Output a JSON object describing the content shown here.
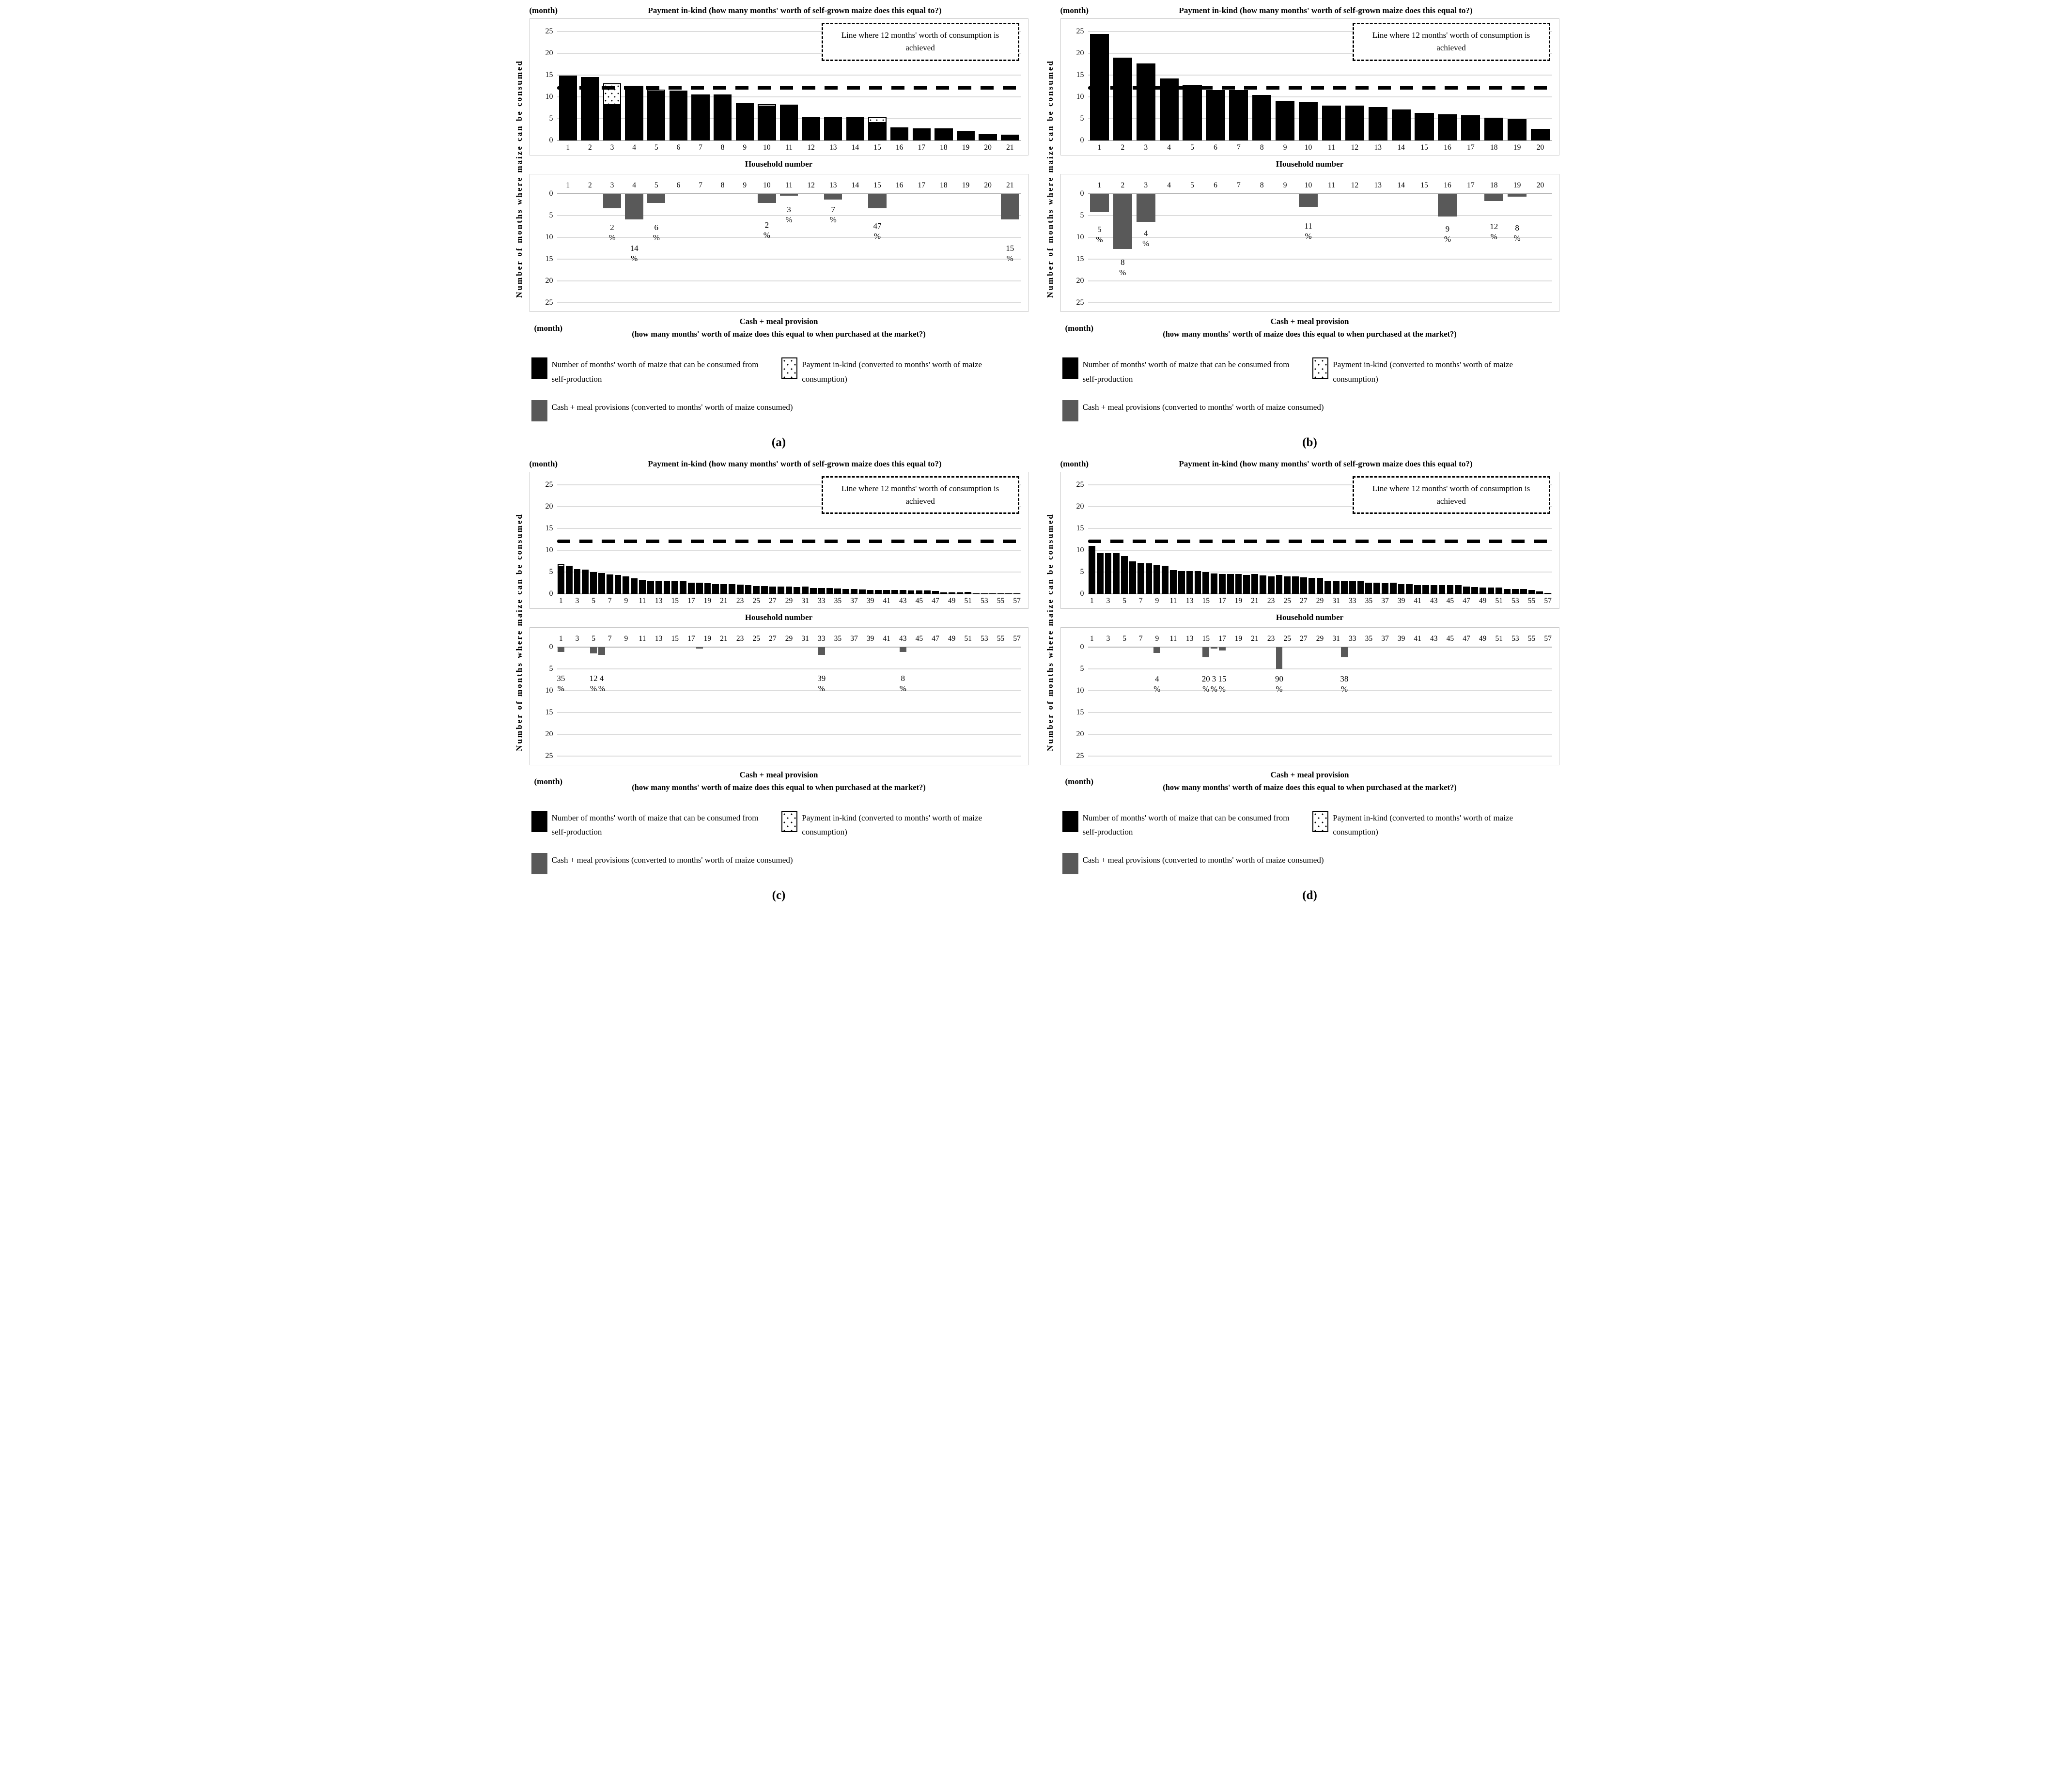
{
  "colors": {
    "bar_black": "#000000",
    "bar_gray": "#595959",
    "bar_inkind_fill": "#ffffff",
    "gridline": "#dcdcdc",
    "reference_line": "#000000"
  },
  "chart_data": [
    {
      "letter": "(a)",
      "month_unit": "(month)",
      "xlabel": "Household number",
      "ylabel": "Number of months where maize can be consumed",
      "yticks": [
        0,
        5,
        10,
        15,
        20,
        25
      ],
      "label_step": 1,
      "top": {
        "type": "bar",
        "title": "Payment in-kind (how many months' worth of self-grown maize does this equal to?)",
        "annotation": "Line where 12 months' worth of consumption is achieved",
        "reference_value": 12,
        "ylim": [
          0,
          25
        ],
        "categories": [
          1,
          2,
          3,
          4,
          5,
          6,
          7,
          8,
          9,
          10,
          11,
          12,
          13,
          14,
          15,
          16,
          17,
          18,
          19,
          20,
          21
        ],
        "self_values": [
          14.9,
          14.6,
          8.2,
          12.6,
          11.2,
          11.4,
          10.6,
          10.6,
          8.6,
          7.9,
          8.2,
          5.3,
          5.3,
          5.3,
          4.1,
          3.0,
          2.8,
          2.8,
          2.1,
          1.5,
          1.3
        ],
        "inkind_values": [
          0,
          0,
          5.0,
          0,
          0.6,
          0,
          0,
          0,
          0,
          0.6,
          0,
          0,
          0,
          0,
          1.4,
          0,
          0,
          0,
          0,
          0,
          0
        ]
      },
      "bottom": {
        "type": "bar-down",
        "title": "Cash + meal provision",
        "subtitle": "(how many months' worth of maize does this equal to when purchased at the market?)",
        "ylim": [
          0,
          25
        ],
        "percent_sign": "%",
        "values": [
          0,
          0,
          3.3,
          5.9,
          2.1,
          0,
          0,
          0,
          0,
          2.1,
          0.4,
          0,
          1.3,
          0,
          3.3,
          0,
          0,
          0,
          0,
          0,
          5.9
        ],
        "labels": [
          {
            "index": 3,
            "value": "2",
            "depth": 6.5
          },
          {
            "index": 4,
            "value": "14",
            "depth": 11.3
          },
          {
            "index": 5,
            "value": "6",
            "depth": 6.5
          },
          {
            "index": 10,
            "value": "2",
            "depth": 6.0
          },
          {
            "index": 11,
            "value": "3",
            "depth": 2.4
          },
          {
            "index": 13,
            "value": "7",
            "depth": 2.4
          },
          {
            "index": 15,
            "value": "47",
            "depth": 6.2
          },
          {
            "index": 21,
            "value": "15",
            "depth": 11.3
          }
        ]
      },
      "legend": {
        "self_label": "Number of months' worth of maize that can be consumed from self-production",
        "inkind_label": "Payment in-kind (converted to months' worth of maize consumption)",
        "cash_label": "Cash + meal provisions (converted to months' worth of maize consumed)"
      }
    },
    {
      "letter": "(b)",
      "month_unit": "(month)",
      "xlabel": "Household number",
      "ylabel": "Number of months where maize can be consumed",
      "yticks": [
        0,
        5,
        10,
        15,
        20,
        25
      ],
      "label_step": 1,
      "top": {
        "type": "bar",
        "title": "Payment in-kind (how many months' worth of self-grown maize does this equal to?)",
        "annotation": "Line where 12 months' worth of consumption is achieved",
        "reference_value": 12,
        "ylim": [
          0,
          25
        ],
        "categories": [
          1,
          2,
          3,
          4,
          5,
          6,
          7,
          8,
          9,
          10,
          11,
          12,
          13,
          14,
          15,
          16,
          17,
          18,
          19,
          20
        ],
        "self_values": [
          24.4,
          19.0,
          17.7,
          14.2,
          12.8,
          11.6,
          11.6,
          10.5,
          9.1,
          8.8,
          8.0,
          8.0,
          7.7,
          7.1,
          6.3,
          6.0,
          5.8,
          5.2,
          4.9,
          2.7
        ],
        "inkind_values": [
          0,
          0,
          0,
          0,
          0,
          0,
          0,
          0,
          0,
          0,
          0,
          0,
          0,
          0,
          0,
          0,
          0,
          0,
          0,
          0
        ]
      },
      "bottom": {
        "type": "bar-down",
        "title": "Cash + meal provision",
        "subtitle": "(how many months' worth of maize does this equal to when purchased at the market?)",
        "ylim": [
          0,
          25
        ],
        "percent_sign": "%",
        "values": [
          4.2,
          12.7,
          6.4,
          0,
          0,
          0,
          0,
          0,
          0,
          3.0,
          0,
          0,
          0,
          0,
          0,
          5.2,
          0,
          1.7,
          0.7,
          0
        ],
        "labels": [
          {
            "index": 1,
            "value": "5",
            "depth": 7.0
          },
          {
            "index": 2,
            "value": "8",
            "depth": 14.5
          },
          {
            "index": 3,
            "value": "4",
            "depth": 7.9
          },
          {
            "index": 10,
            "value": "11",
            "depth": 6.2
          },
          {
            "index": 16,
            "value": "9",
            "depth": 6.9
          },
          {
            "index": 18,
            "value": "12",
            "depth": 6.3
          },
          {
            "index": 19,
            "value": "8",
            "depth": 6.7
          }
        ]
      },
      "legend": {
        "self_label": "Number of months' worth of maize that can be consumed from self-production",
        "inkind_label": "Payment in-kind (converted to months' worth of maize consumption)",
        "cash_label": "Cash + meal provisions (converted to months' worth of maize consumed)"
      }
    },
    {
      "letter": "(c)",
      "month_unit": "(month)",
      "xlabel": "Household number",
      "ylabel": "Number of months where maize can be consumed",
      "yticks": [
        0,
        5,
        10,
        15,
        20,
        25
      ],
      "label_step": 2,
      "top": {
        "type": "bar",
        "title": "Payment in-kind (how many months' worth of self-grown maize does this equal to?)",
        "annotation": "Line where 12 months' worth of consumption is achieved",
        "reference_value": 12,
        "ylim": [
          0,
          25
        ],
        "categories": [
          1,
          2,
          3,
          4,
          5,
          6,
          7,
          8,
          9,
          10,
          11,
          12,
          13,
          14,
          15,
          16,
          17,
          18,
          19,
          20,
          21,
          22,
          23,
          24,
          25,
          26,
          27,
          28,
          29,
          30,
          31,
          32,
          33,
          34,
          35,
          36,
          37,
          38,
          39,
          40,
          41,
          42,
          43,
          44,
          45,
          46,
          47,
          48,
          49,
          50,
          51,
          52,
          53,
          54,
          55,
          56,
          57
        ],
        "self_values": [
          6.3,
          6.4,
          5.6,
          5.5,
          5.0,
          4.7,
          4.4,
          4.3,
          4.0,
          3.5,
          3.2,
          3.0,
          2.9,
          2.9,
          2.8,
          2.8,
          2.5,
          2.5,
          2.4,
          2.2,
          2.2,
          2.2,
          2.1,
          1.9,
          1.7,
          1.7,
          1.6,
          1.6,
          1.6,
          1.5,
          1.6,
          1.3,
          1.3,
          1.3,
          1.2,
          1.1,
          1.1,
          1.0,
          0.8,
          0.8,
          0.8,
          0.8,
          0.8,
          0.7,
          0.7,
          0.7,
          0.6,
          0.3,
          0.3,
          0.3,
          0.4,
          0.1,
          0.1,
          0.1,
          0.1,
          0.1,
          0.05
        ],
        "inkind_values": [
          0.6,
          0,
          0,
          0,
          0,
          0,
          0,
          0,
          0,
          0,
          0,
          0,
          0,
          0,
          0,
          0,
          0,
          0,
          0,
          0,
          0,
          0,
          0,
          0,
          0,
          0,
          0,
          0,
          0,
          0,
          0,
          0,
          0,
          0,
          0,
          0,
          0,
          0,
          0,
          0,
          0,
          0,
          0,
          0,
          0,
          0,
          0,
          0,
          0,
          0,
          0,
          0,
          0,
          0,
          0,
          0,
          0
        ]
      },
      "bottom": {
        "type": "bar-down",
        "title": "Cash + meal provision",
        "subtitle": "(how many months' worth of maize does this equal to when purchased at the market?)",
        "ylim": [
          0,
          25
        ],
        "percent_sign": "%",
        "values": [
          1.2,
          0,
          0,
          0,
          1.5,
          1.8,
          0,
          0,
          0,
          0,
          0,
          0,
          0,
          0,
          0,
          0,
          0,
          0.35,
          0,
          0,
          0,
          0,
          0,
          0,
          0,
          0,
          0,
          0,
          0,
          0,
          0,
          0,
          1.8,
          0,
          0,
          0,
          0,
          0,
          0,
          0,
          0,
          0,
          1.2,
          0,
          0,
          0,
          0,
          0,
          0,
          0,
          0,
          0,
          0,
          0,
          0,
          0,
          0
        ],
        "labels": [
          {
            "index": 1,
            "value": "35",
            "depth": 6.1
          },
          {
            "index": 5,
            "value": "12",
            "depth": 6.1
          },
          {
            "index": 6,
            "value": "4",
            "depth": 6.1
          },
          {
            "index": 33,
            "value": "39",
            "depth": 6.1
          },
          {
            "index": 43,
            "value": "8",
            "depth": 6.1
          }
        ]
      },
      "legend": {
        "self_label": "Number of months' worth of maize that can be consumed from self-production",
        "inkind_label": "Payment in-kind (converted to months' worth of maize consumption)",
        "cash_label": "Cash + meal provisions (converted to months' worth of maize consumed)"
      }
    },
    {
      "letter": "(d)",
      "month_unit": "(month)",
      "xlabel": "Household number",
      "ylabel": "Number of months where maize can be consumed",
      "yticks": [
        0,
        5,
        10,
        15,
        20,
        25
      ],
      "label_step": 2,
      "top": {
        "type": "bar",
        "title": "Payment in-kind (how many months' worth of self-grown maize does this equal to?)",
        "annotation": "Line where 12 months' worth of consumption is achieved",
        "reference_value": 12,
        "ylim": [
          0,
          25
        ],
        "categories": [
          1,
          2,
          3,
          4,
          5,
          6,
          7,
          8,
          9,
          10,
          11,
          12,
          13,
          14,
          15,
          16,
          17,
          18,
          19,
          20,
          21,
          22,
          23,
          24,
          25,
          26,
          27,
          28,
          29,
          30,
          31,
          32,
          33,
          34,
          35,
          36,
          37,
          38,
          39,
          40,
          41,
          42,
          43,
          44,
          45,
          46,
          47,
          48,
          49,
          50,
          51,
          52,
          53,
          54,
          55,
          56,
          57
        ],
        "self_values": [
          11.0,
          9.3,
          9.3,
          9.3,
          8.6,
          7.4,
          7.1,
          7.0,
          6.5,
          6.4,
          5.4,
          5.2,
          5.2,
          5.2,
          4.9,
          4.6,
          4.5,
          4.5,
          4.5,
          4.3,
          4.5,
          4.2,
          4.0,
          4.3,
          4.0,
          3.9,
          3.7,
          3.6,
          3.6,
          3.0,
          3.0,
          2.9,
          2.8,
          2.8,
          2.5,
          2.5,
          2.4,
          2.5,
          2.2,
          2.2,
          2.0,
          1.9,
          1.9,
          1.9,
          1.9,
          1.9,
          1.6,
          1.5,
          1.4,
          1.4,
          1.4,
          1.1,
          1.1,
          1.1,
          0.8,
          0.5,
          0.2
        ],
        "inkind_values": [
          0,
          0,
          0,
          0,
          0,
          0,
          0,
          0,
          0,
          0,
          0,
          0,
          0,
          0,
          0,
          0,
          0,
          0,
          0,
          0,
          0,
          0,
          0,
          0,
          0,
          0,
          0,
          0,
          0,
          0,
          0,
          0,
          0,
          0,
          0,
          0,
          0,
          0,
          0,
          0,
          0,
          0,
          0,
          0,
          0,
          0,
          0,
          0,
          0,
          0,
          0,
          0,
          0,
          0,
          0,
          0,
          0
        ]
      },
      "bottom": {
        "type": "bar-down",
        "title": "Cash + meal provision",
        "subtitle": "(how many months' worth of maize does this equal to when purchased at the market?)",
        "ylim": [
          0,
          25
        ],
        "percent_sign": "%",
        "values": [
          0,
          0,
          0,
          0,
          0,
          0,
          0,
          0,
          1.4,
          0,
          0,
          0,
          0,
          0,
          2.4,
          0.4,
          0.8,
          0,
          0,
          0,
          0,
          0,
          0,
          5.0,
          0,
          0,
          0,
          0,
          0,
          0,
          0,
          2.4,
          0,
          0,
          0,
          0,
          0,
          0,
          0,
          0,
          0,
          0,
          0,
          0,
          0,
          0,
          0,
          0,
          0,
          0,
          0,
          0,
          0,
          0,
          0,
          0,
          0
        ],
        "labels": [
          {
            "index": 9,
            "value": "4",
            "depth": 6.2
          },
          {
            "index": 15,
            "value": "20",
            "depth": 6.2
          },
          {
            "index": 16,
            "value": "3",
            "depth": 6.2
          },
          {
            "index": 17,
            "value": "15",
            "depth": 6.2
          },
          {
            "index": 24,
            "value": "90",
            "depth": 6.2
          },
          {
            "index": 32,
            "value": "38",
            "depth": 6.2
          }
        ]
      },
      "legend": {
        "self_label": "Number of months' worth of maize that can be consumed from self-production",
        "inkind_label": "Payment in-kind (converted to months' worth of maize consumption)",
        "cash_label": "Cash + meal provisions (converted to months' worth of maize consumed)"
      }
    }
  ]
}
